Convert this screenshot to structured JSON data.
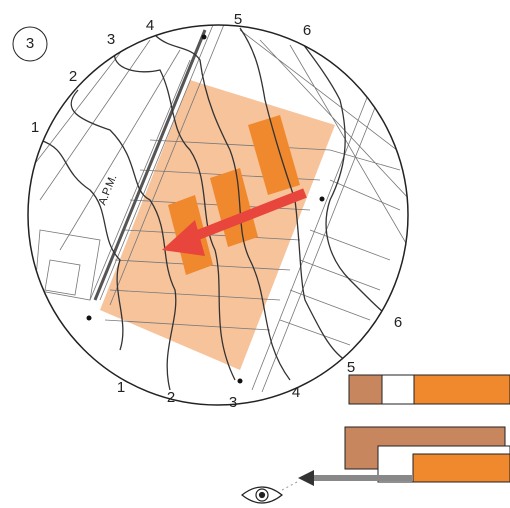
{
  "badge": "3",
  "top_labels": [
    "1",
    "2",
    "3",
    "4",
    "5",
    "6"
  ],
  "bottom_labels": [
    "1",
    "2",
    "3",
    "4",
    "5",
    "6"
  ],
  "road_label": "A.P.M."
}
